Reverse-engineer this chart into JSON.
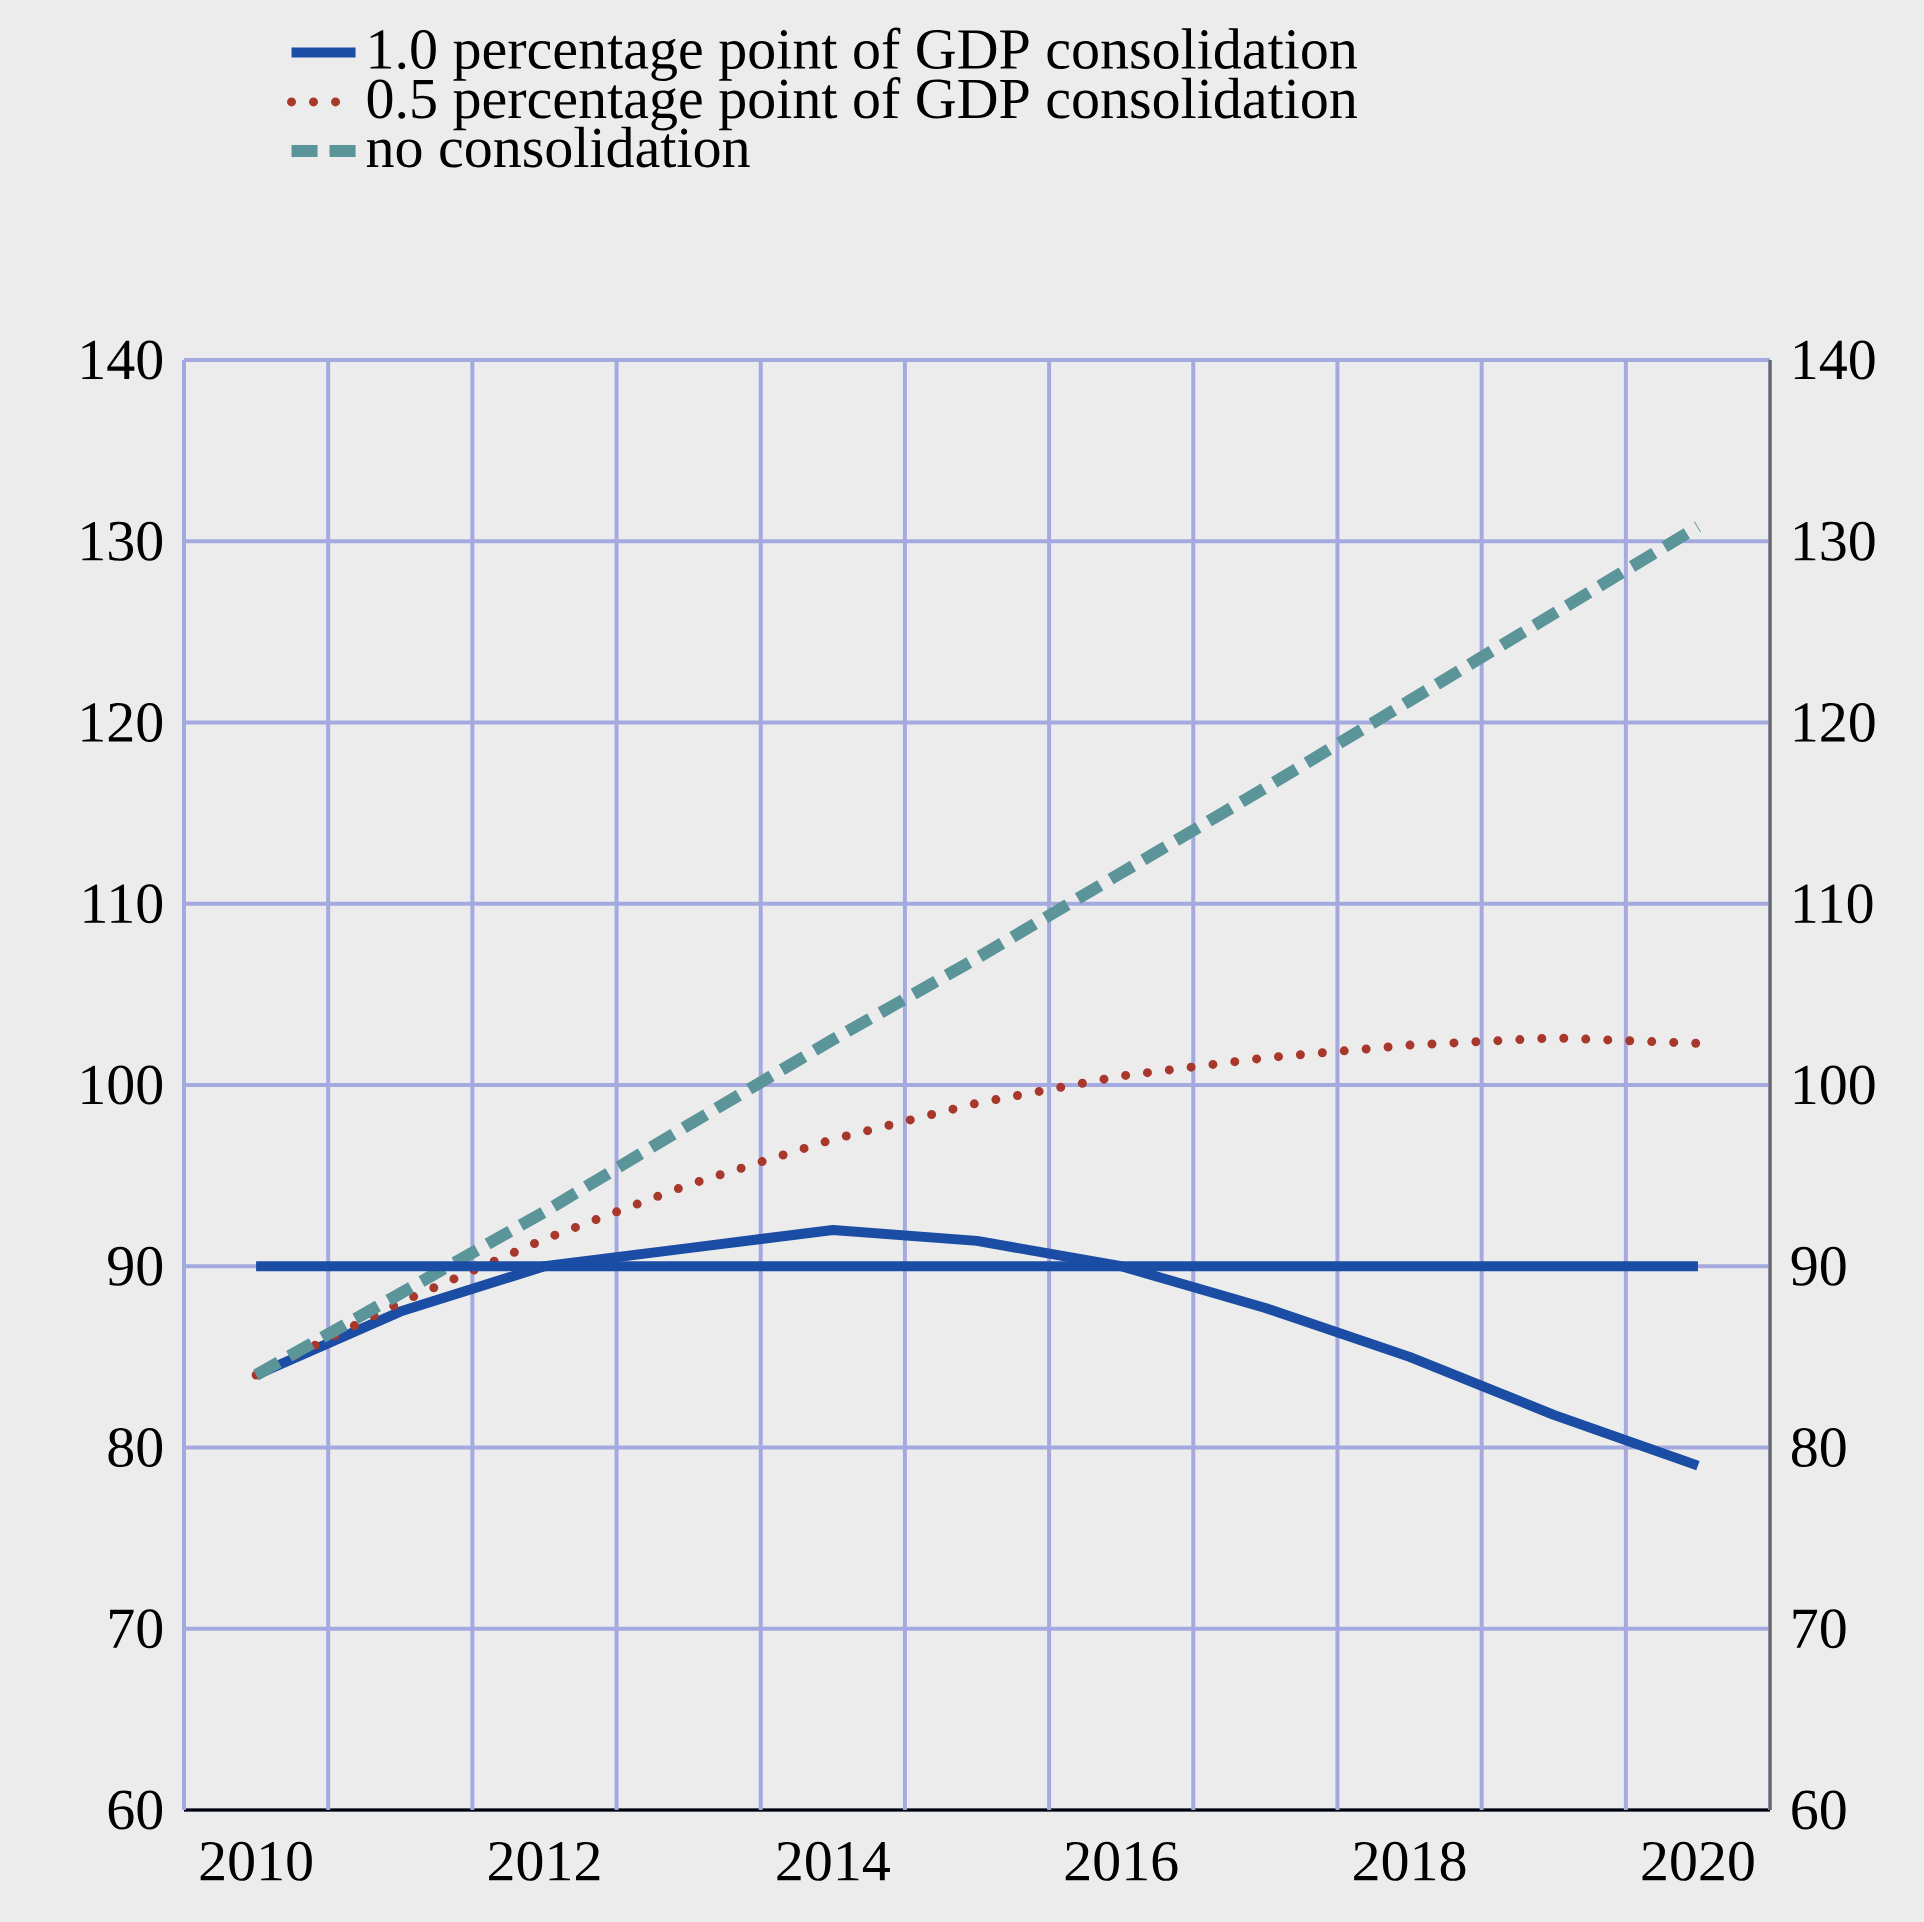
{
  "chart_data": {
    "type": "line",
    "x": [
      2010,
      2011,
      2012,
      2013,
      2014,
      2015,
      2016,
      2017,
      2018,
      2019,
      2020
    ],
    "series": [
      {
        "name": "1.0 percentage point of GDP consolidation",
        "color": "#1a4da3",
        "line_style": "solid",
        "values": [
          84,
          87.5,
          90,
          91,
          92,
          91.4,
          90,
          87.7,
          85,
          81.8,
          79
        ]
      },
      {
        "name": "0.5 percentage point of GDP consolidation",
        "color": "#a8382c",
        "line_style": "dotted",
        "values": [
          84,
          88,
          91.5,
          94.5,
          97,
          99,
          100.5,
          101.5,
          102.2,
          102.6,
          102.3
        ]
      },
      {
        "name": "no consolidation",
        "color": "#5b9499",
        "line_style": "dashed",
        "values": [
          84,
          88.5,
          93,
          97.8,
          102.5,
          107,
          111.7,
          116.4,
          121.2,
          126,
          130.8
        ]
      },
      {
        "color": "#1a4da3",
        "line_style": "solid",
        "values": [
          90,
          90,
          90,
          90,
          90,
          90,
          90,
          90,
          90,
          90,
          90
        ]
      }
    ],
    "xlim": [
      2009.5,
      2020.5
    ],
    "xticks": [
      {
        "value": 2009.5,
        "label": null
      },
      {
        "value": 2010,
        "label": "2010"
      },
      {
        "value": 2010.5,
        "label": null
      },
      {
        "value": 2011.5,
        "label": null
      },
      {
        "value": 2012,
        "label": "2012"
      },
      {
        "value": 2012.5,
        "label": null
      },
      {
        "value": 2013.5,
        "label": null
      },
      {
        "value": 2014,
        "label": "2014"
      },
      {
        "value": 2014.5,
        "label": null
      },
      {
        "value": 2015.5,
        "label": null
      },
      {
        "value": 2016,
        "label": "2016"
      },
      {
        "value": 2016.5,
        "label": null
      },
      {
        "value": 2017.5,
        "label": null
      },
      {
        "value": 2018,
        "label": "2018"
      },
      {
        "value": 2018.5,
        "label": null
      },
      {
        "value": 2019.5,
        "label": null
      },
      {
        "value": 2020,
        "label": "2020"
      },
      {
        "value": 2020.5,
        "label": null
      }
    ],
    "ylim": [
      60,
      140
    ],
    "yticks": [
      60,
      70,
      80,
      90,
      100,
      110,
      120,
      130,
      140
    ],
    "y2lim": [
      60,
      140
    ],
    "y2ticks": [
      60,
      70,
      80,
      90,
      100,
      110,
      120,
      130,
      140
    ],
    "grid": true,
    "legend": "top"
  }
}
